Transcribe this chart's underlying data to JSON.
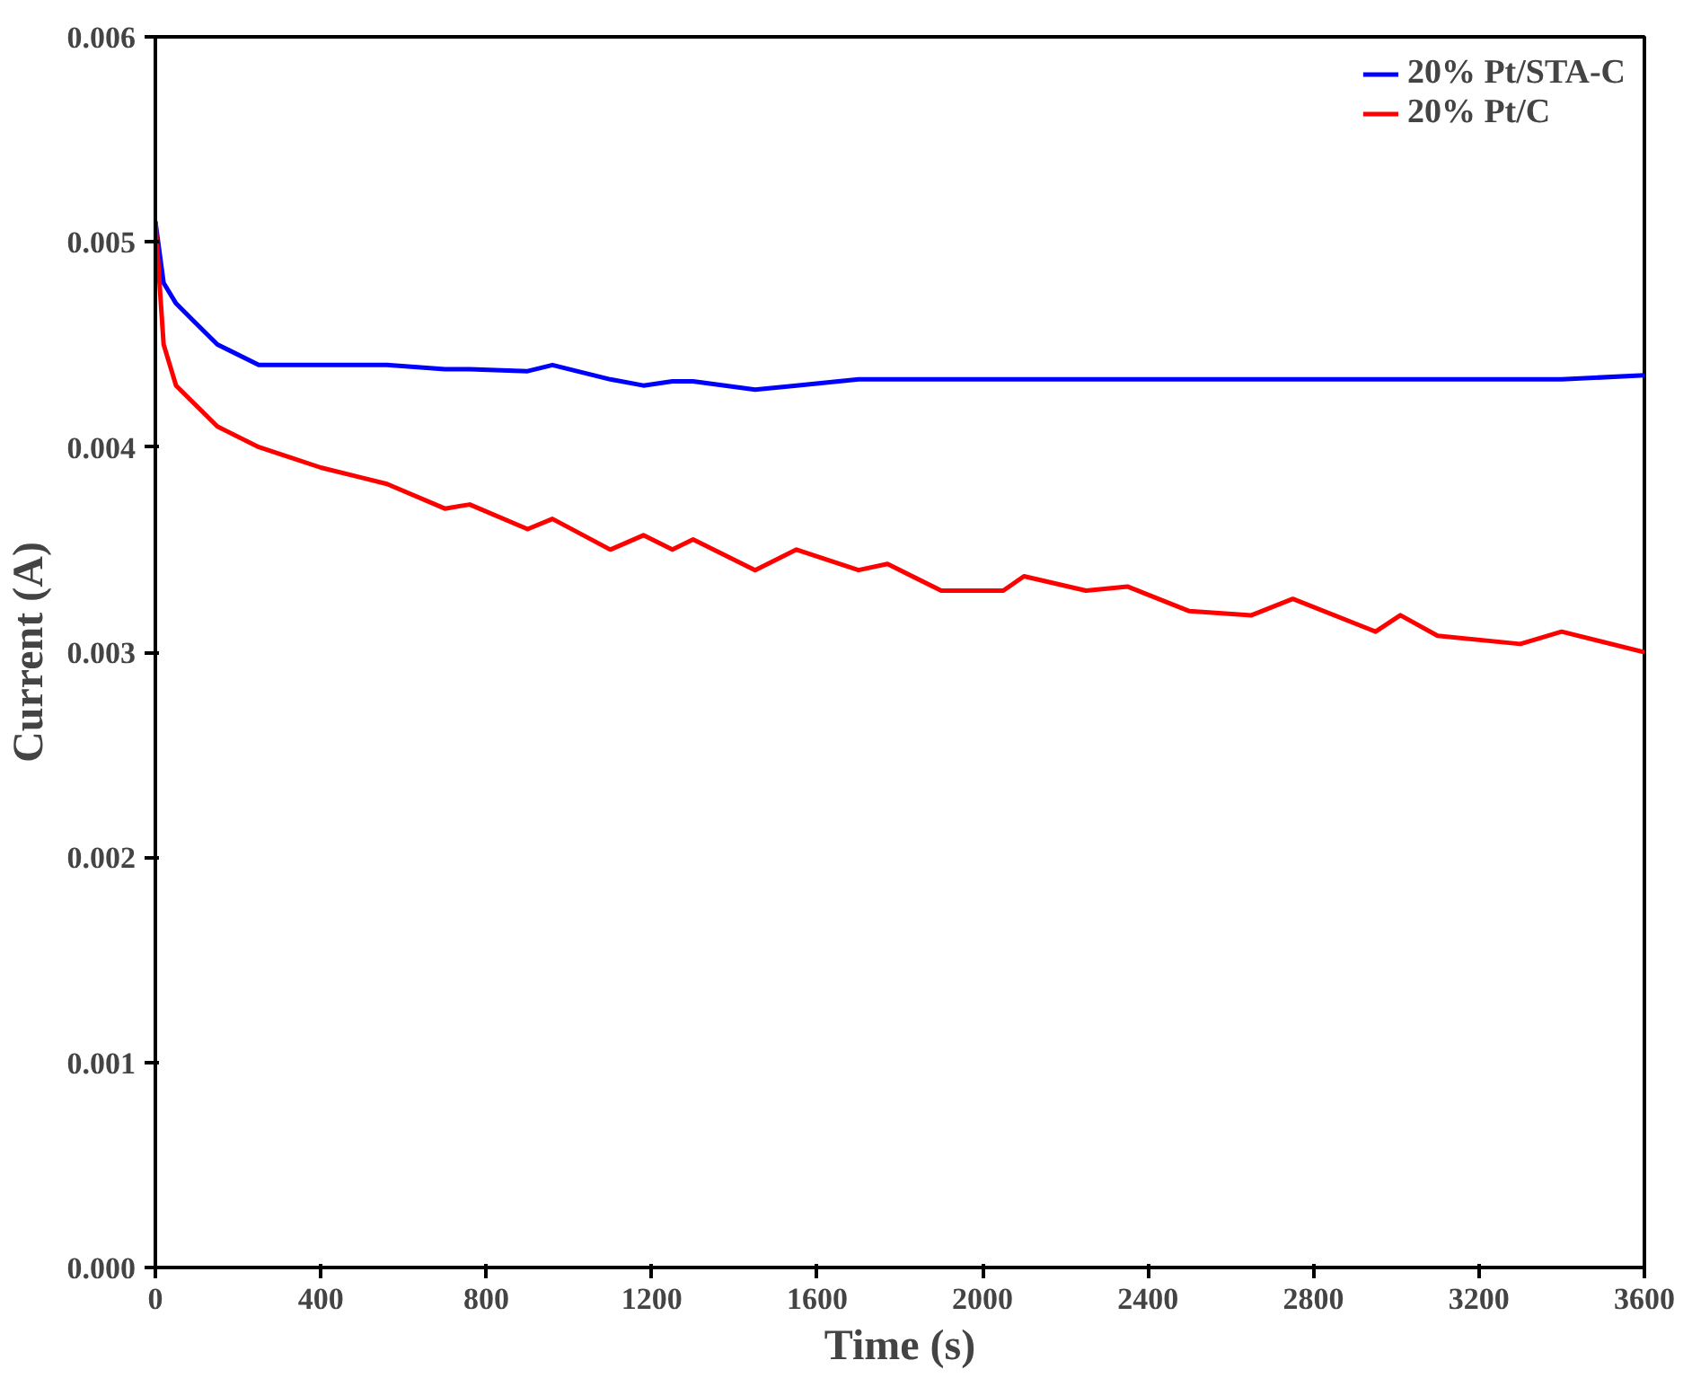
{
  "chart_data": {
    "type": "line",
    "xlabel": "Time (s)",
    "ylabel": "Current (A)",
    "xlim": [
      0,
      3600
    ],
    "xticks": [
      0,
      400,
      800,
      1200,
      1600,
      2000,
      2400,
      2800,
      3200,
      3600
    ],
    "ylim": [
      0,
      0.006
    ],
    "yticks": [
      {
        "value": 0,
        "label": "0.000"
      },
      {
        "value": 0.001,
        "label": "0.001"
      },
      {
        "value": 0.002,
        "label": "0.002"
      },
      {
        "value": 0.003,
        "label": "0.003"
      },
      {
        "value": 0.004,
        "label": "0.004"
      },
      {
        "value": 0.005,
        "label": "0.005"
      },
      {
        "value": 0.006,
        "label": "0.006"
      }
    ],
    "legend": "top right",
    "grid": false,
    "line_style": "solid",
    "x": [
      0,
      20,
      50,
      100,
      150,
      250,
      400,
      500,
      560,
      700,
      760,
      900,
      960,
      1100,
      1180,
      1250,
      1300,
      1450,
      1550,
      1700,
      1770,
      1900,
      2050,
      2100,
      2250,
      2350,
      2500,
      2650,
      2750,
      2950,
      3010,
      3100,
      3300,
      3400,
      3600
    ],
    "series": [
      {
        "name": "20% Pt/STA-C",
        "color": "#0000ff",
        "values": [
          0.0051,
          0.0048,
          0.0047,
          0.0046,
          0.0045,
          0.0044,
          0.0044,
          0.0044,
          0.0044,
          0.00438,
          0.00438,
          0.00437,
          0.0044,
          0.00433,
          0.0043,
          0.00432,
          0.00432,
          0.00428,
          0.0043,
          0.00433,
          0.00433,
          0.00433,
          0.00433,
          0.00433,
          0.00433,
          0.00433,
          0.00433,
          0.00433,
          0.00433,
          0.00433,
          0.00433,
          0.00433,
          0.00433,
          0.00433,
          0.00435
        ]
      },
      {
        "name": "20% Pt/C",
        "color": "#ff0000",
        "values": [
          0.0051,
          0.0045,
          0.0043,
          0.0042,
          0.0041,
          0.004,
          0.0039,
          0.00385,
          0.00382,
          0.0037,
          0.00372,
          0.0036,
          0.00365,
          0.0035,
          0.00357,
          0.0035,
          0.00355,
          0.0034,
          0.0035,
          0.0034,
          0.00343,
          0.0033,
          0.0033,
          0.00337,
          0.0033,
          0.00332,
          0.0032,
          0.00318,
          0.00326,
          0.0031,
          0.00318,
          0.00308,
          0.00304,
          0.0031,
          0.003
        ]
      }
    ]
  }
}
